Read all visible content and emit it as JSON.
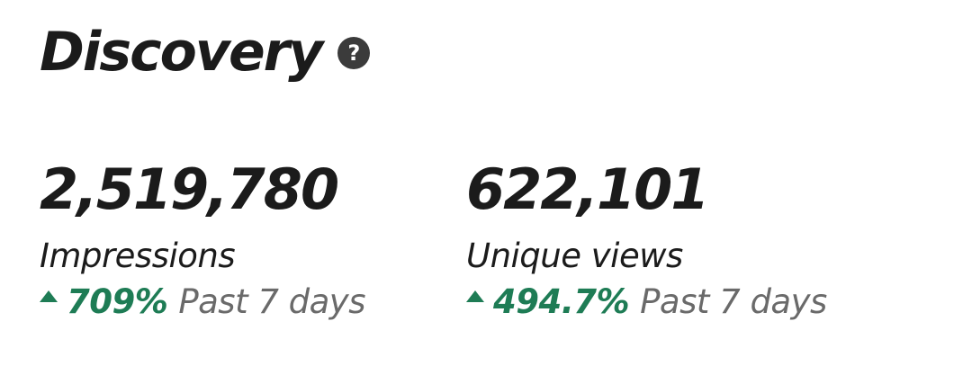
{
  "section": {
    "title": "Discovery",
    "help_icon": "help-circle-icon",
    "help_glyph": "?"
  },
  "metrics": [
    {
      "value": "2,519,780",
      "label": "Impressions",
      "change_icon": "arrow-up-icon",
      "change": "709%",
      "period": "Past 7 days"
    },
    {
      "value": "622,101",
      "label": "Unique views",
      "change_icon": "arrow-up-icon",
      "change": "494.7%",
      "period": "Past 7 days"
    }
  ],
  "colors": {
    "positive": "#1e7c55",
    "muted": "#6a6a6a",
    "text": "#1b1b1b"
  }
}
